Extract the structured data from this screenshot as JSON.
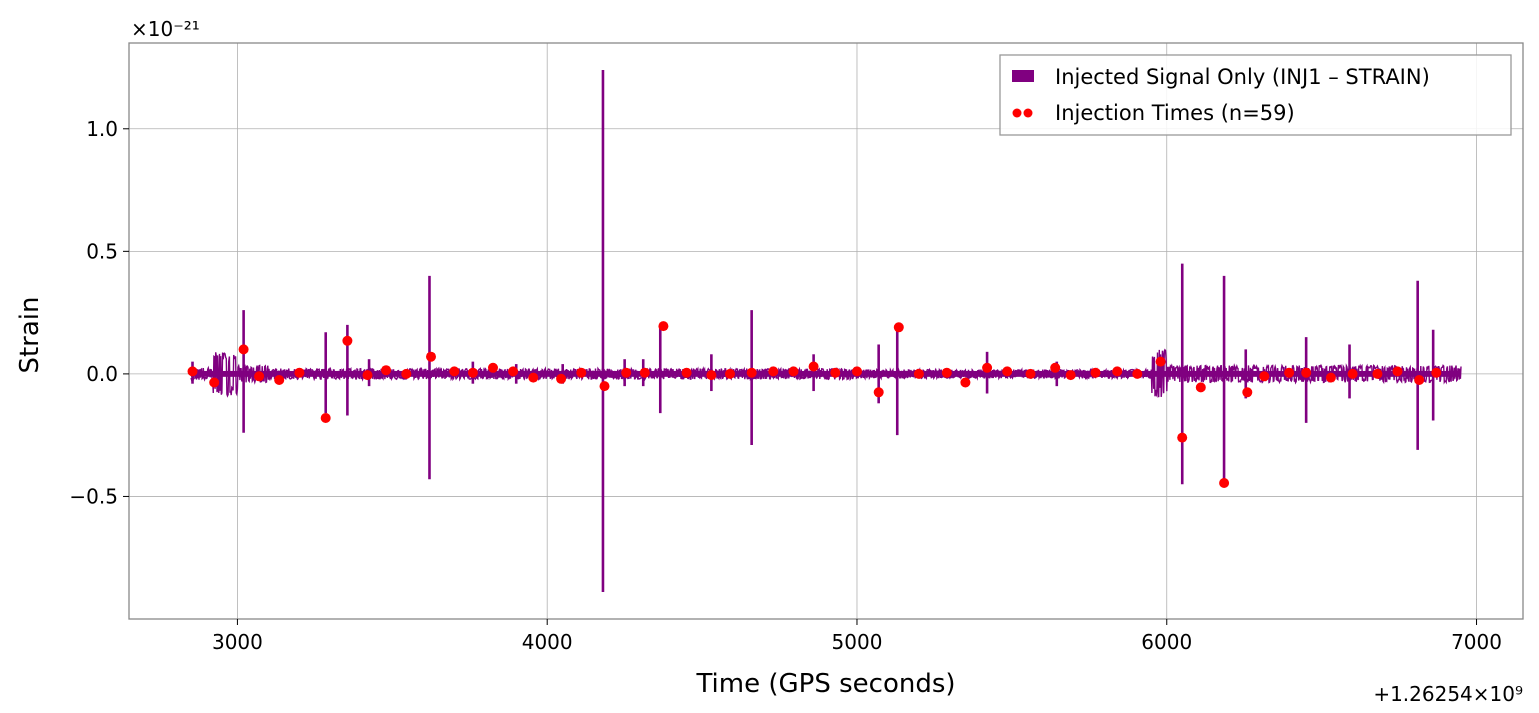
{
  "chart_data": {
    "type": "line",
    "title": "",
    "xlabel": "Time (GPS seconds)",
    "ylabel": "Strain",
    "y_multiplier_label": "×10⁻²¹",
    "x_offset_label": "+1.26254×10⁹",
    "xlim": [
      2650,
      7150
    ],
    "ylim": [
      -1.0,
      1.35
    ],
    "x_ticks": [
      3000,
      4000,
      5000,
      6000,
      7000
    ],
    "x_tick_labels": [
      "3000",
      "4000",
      "5000",
      "6000",
      "7000"
    ],
    "y_ticks": [
      -0.5,
      0.0,
      0.5,
      1.0
    ],
    "y_tick_labels": [
      "−0.5",
      "0.0",
      "0.5",
      "1.0"
    ],
    "grid": true,
    "legend_position": "top-right",
    "series": [
      {
        "name": "Injected Signal Only (INJ1 – STRAIN)",
        "kind": "line",
        "color": "#800080",
        "x_range": [
          2850,
          6950
        ],
        "noise_segments": [
          {
            "x0": 2850,
            "x1": 2920,
            "amp": 0.025
          },
          {
            "x0": 2920,
            "x1": 3000,
            "amp": 0.09
          },
          {
            "x0": 3000,
            "x1": 3100,
            "amp": 0.035
          },
          {
            "x0": 3100,
            "x1": 5000,
            "amp": 0.022
          },
          {
            "x0": 5000,
            "x1": 5950,
            "amp": 0.018
          },
          {
            "x0": 5950,
            "x1": 6000,
            "amp": 0.1
          },
          {
            "x0": 6000,
            "x1": 6950,
            "amp": 0.035
          }
        ],
        "spikes": [
          {
            "x": 2855,
            "hi": 0.05,
            "lo": -0.04
          },
          {
            "x": 3020,
            "hi": 0.26,
            "lo": -0.24
          },
          {
            "x": 3285,
            "hi": 0.17,
            "lo": -0.16
          },
          {
            "x": 3355,
            "hi": 0.2,
            "lo": -0.17
          },
          {
            "x": 3425,
            "hi": 0.06,
            "lo": -0.05
          },
          {
            "x": 3620,
            "hi": 0.4,
            "lo": -0.43
          },
          {
            "x": 3760,
            "hi": 0.05,
            "lo": -0.04
          },
          {
            "x": 3900,
            "hi": 0.04,
            "lo": -0.04
          },
          {
            "x": 4050,
            "hi": 0.04,
            "lo": -0.04
          },
          {
            "x": 4180,
            "hi": 1.24,
            "lo": -0.89
          },
          {
            "x": 4250,
            "hi": 0.06,
            "lo": -0.05
          },
          {
            "x": 4310,
            "hi": 0.06,
            "lo": -0.05
          },
          {
            "x": 4365,
            "hi": 0.19,
            "lo": -0.16
          },
          {
            "x": 4530,
            "hi": 0.08,
            "lo": -0.07
          },
          {
            "x": 4660,
            "hi": 0.26,
            "lo": -0.29
          },
          {
            "x": 4860,
            "hi": 0.08,
            "lo": -0.07
          },
          {
            "x": 5070,
            "hi": 0.12,
            "lo": -0.12
          },
          {
            "x": 5130,
            "hi": 0.2,
            "lo": -0.25
          },
          {
            "x": 5420,
            "hi": 0.09,
            "lo": -0.08
          },
          {
            "x": 5645,
            "hi": 0.05,
            "lo": -0.05
          },
          {
            "x": 6050,
            "hi": 0.45,
            "lo": -0.45
          },
          {
            "x": 6185,
            "hi": 0.4,
            "lo": -0.45
          },
          {
            "x": 6255,
            "hi": 0.1,
            "lo": -0.1
          },
          {
            "x": 6450,
            "hi": 0.15,
            "lo": -0.2
          },
          {
            "x": 6590,
            "hi": 0.12,
            "lo": -0.1
          },
          {
            "x": 6810,
            "hi": 0.38,
            "lo": -0.31
          },
          {
            "x": 6860,
            "hi": 0.18,
            "lo": -0.19
          }
        ]
      },
      {
        "name": "Injection Times (n=59)",
        "kind": "scatter",
        "color": "#ff0000",
        "points": [
          [
            2855,
            0.01
          ],
          [
            2925,
            -0.035
          ],
          [
            3020,
            0.1
          ],
          [
            3070,
            -0.01
          ],
          [
            3135,
            -0.025
          ],
          [
            3200,
            0.005
          ],
          [
            3285,
            -0.18
          ],
          [
            3355,
            0.135
          ],
          [
            3420,
            -0.005
          ],
          [
            3480,
            0.015
          ],
          [
            3545,
            0.0
          ],
          [
            3625,
            0.07
          ],
          [
            3700,
            0.01
          ],
          [
            3760,
            0.005
          ],
          [
            3825,
            0.025
          ],
          [
            3890,
            0.01
          ],
          [
            3955,
            -0.015
          ],
          [
            4045,
            -0.02
          ],
          [
            4110,
            0.005
          ],
          [
            4185,
            -0.05
          ],
          [
            4255,
            0.005
          ],
          [
            4315,
            0.005
          ],
          [
            4375,
            0.195
          ],
          [
            4450,
            0.005
          ],
          [
            4530,
            -0.005
          ],
          [
            4590,
            0.0
          ],
          [
            4660,
            0.005
          ],
          [
            4730,
            0.01
          ],
          [
            4795,
            0.01
          ],
          [
            4860,
            0.03
          ],
          [
            4930,
            0.005
          ],
          [
            5000,
            0.01
          ],
          [
            5070,
            -0.075
          ],
          [
            5135,
            0.19
          ],
          [
            5200,
            0.0
          ],
          [
            5290,
            0.005
          ],
          [
            5350,
            -0.035
          ],
          [
            5420,
            0.025
          ],
          [
            5485,
            0.01
          ],
          [
            5560,
            0.0
          ],
          [
            5640,
            0.025
          ],
          [
            5690,
            -0.005
          ],
          [
            5770,
            0.005
          ],
          [
            5840,
            0.01
          ],
          [
            5905,
            0.0
          ],
          [
            5980,
            0.05
          ],
          [
            6050,
            -0.26
          ],
          [
            6110,
            -0.055
          ],
          [
            6185,
            -0.445
          ],
          [
            6260,
            -0.075
          ],
          [
            6315,
            -0.01
          ],
          [
            6395,
            0.005
          ],
          [
            6450,
            0.005
          ],
          [
            6530,
            -0.015
          ],
          [
            6600,
            0.0
          ],
          [
            6680,
            0.0
          ],
          [
            6745,
            0.01
          ],
          [
            6815,
            -0.025
          ],
          [
            6870,
            0.005
          ]
        ]
      }
    ]
  }
}
